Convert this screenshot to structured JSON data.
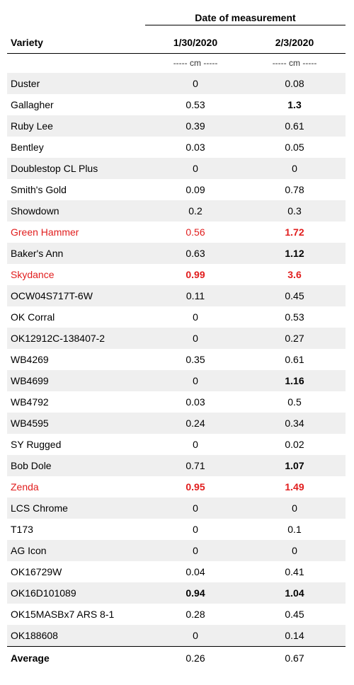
{
  "header": {
    "group_title": "Date of measurement",
    "variety_label": "Variety",
    "date1": "1/30/2020",
    "date2": "2/3/2020",
    "unit1": "----- cm -----",
    "unit2": "----- cm -----"
  },
  "colors": {
    "highlight_red": "#e11d1d",
    "row_shade": "#efefef"
  },
  "rows": [
    {
      "name": "Duster",
      "v1": "0",
      "v2": "0.08",
      "red": false,
      "b1": false,
      "b2": false
    },
    {
      "name": "Gallagher",
      "v1": "0.53",
      "v2": "1.3",
      "red": false,
      "b1": false,
      "b2": true
    },
    {
      "name": "Ruby Lee",
      "v1": "0.39",
      "v2": "0.61",
      "red": false,
      "b1": false,
      "b2": false
    },
    {
      "name": "Bentley",
      "v1": "0.03",
      "v2": "0.05",
      "red": false,
      "b1": false,
      "b2": false
    },
    {
      "name": "Doublestop CL Plus",
      "v1": "0",
      "v2": "0",
      "red": false,
      "b1": false,
      "b2": false
    },
    {
      "name": "Smith's Gold",
      "v1": "0.09",
      "v2": "0.78",
      "red": false,
      "b1": false,
      "b2": false
    },
    {
      "name": "Showdown",
      "v1": "0.2",
      "v2": "0.3",
      "red": false,
      "b1": false,
      "b2": false
    },
    {
      "name": "Green Hammer",
      "v1": "0.56",
      "v2": "1.72",
      "red": true,
      "b1": false,
      "b2": true
    },
    {
      "name": "Baker's Ann",
      "v1": "0.63",
      "v2": "1.12",
      "red": false,
      "b1": false,
      "b2": true
    },
    {
      "name": "Skydance",
      "v1": "0.99",
      "v2": "3.6",
      "red": true,
      "b1": true,
      "b2": true
    },
    {
      "name": "OCW04S717T-6W",
      "v1": "0.11",
      "v2": "0.45",
      "red": false,
      "b1": false,
      "b2": false
    },
    {
      "name": "OK Corral",
      "v1": "0",
      "v2": "0.53",
      "red": false,
      "b1": false,
      "b2": false
    },
    {
      "name": "OK12912C-138407-2",
      "v1": "0",
      "v2": "0.27",
      "red": false,
      "b1": false,
      "b2": false
    },
    {
      "name": "WB4269",
      "v1": "0.35",
      "v2": "0.61",
      "red": false,
      "b1": false,
      "b2": false
    },
    {
      "name": "WB4699",
      "v1": "0",
      "v2": "1.16",
      "red": false,
      "b1": false,
      "b2": true
    },
    {
      "name": "WB4792",
      "v1": "0.03",
      "v2": "0.5",
      "red": false,
      "b1": false,
      "b2": false
    },
    {
      "name": "WB4595",
      "v1": "0.24",
      "v2": "0.34",
      "red": false,
      "b1": false,
      "b2": false
    },
    {
      "name": "SY Rugged",
      "v1": "0",
      "v2": "0.02",
      "red": false,
      "b1": false,
      "b2": false
    },
    {
      "name": "Bob Dole",
      "v1": "0.71",
      "v2": "1.07",
      "red": false,
      "b1": false,
      "b2": true
    },
    {
      "name": "Zenda",
      "v1": "0.95",
      "v2": "1.49",
      "red": true,
      "b1": true,
      "b2": true
    },
    {
      "name": "LCS Chrome",
      "v1": "0",
      "v2": "0",
      "red": false,
      "b1": false,
      "b2": false
    },
    {
      "name": "T173",
      "v1": "0",
      "v2": "0.1",
      "red": false,
      "b1": false,
      "b2": false
    },
    {
      "name": "AG Icon",
      "v1": "0",
      "v2": "0",
      "red": false,
      "b1": false,
      "b2": false
    },
    {
      "name": "OK16729W",
      "v1": "0.04",
      "v2": "0.41",
      "red": false,
      "b1": false,
      "b2": false
    },
    {
      "name": "OK16D101089",
      "v1": "0.94",
      "v2": "1.04",
      "red": false,
      "b1": true,
      "b2": true
    },
    {
      "name": "OK15MASBx7 ARS 8-1",
      "v1": "0.28",
      "v2": "0.45",
      "red": false,
      "b1": false,
      "b2": false
    },
    {
      "name": "OK188608",
      "v1": "0",
      "v2": "0.14",
      "red": false,
      "b1": false,
      "b2": false
    }
  ],
  "average": {
    "label": "Average",
    "v1": "0.26",
    "v2": "0.67"
  }
}
